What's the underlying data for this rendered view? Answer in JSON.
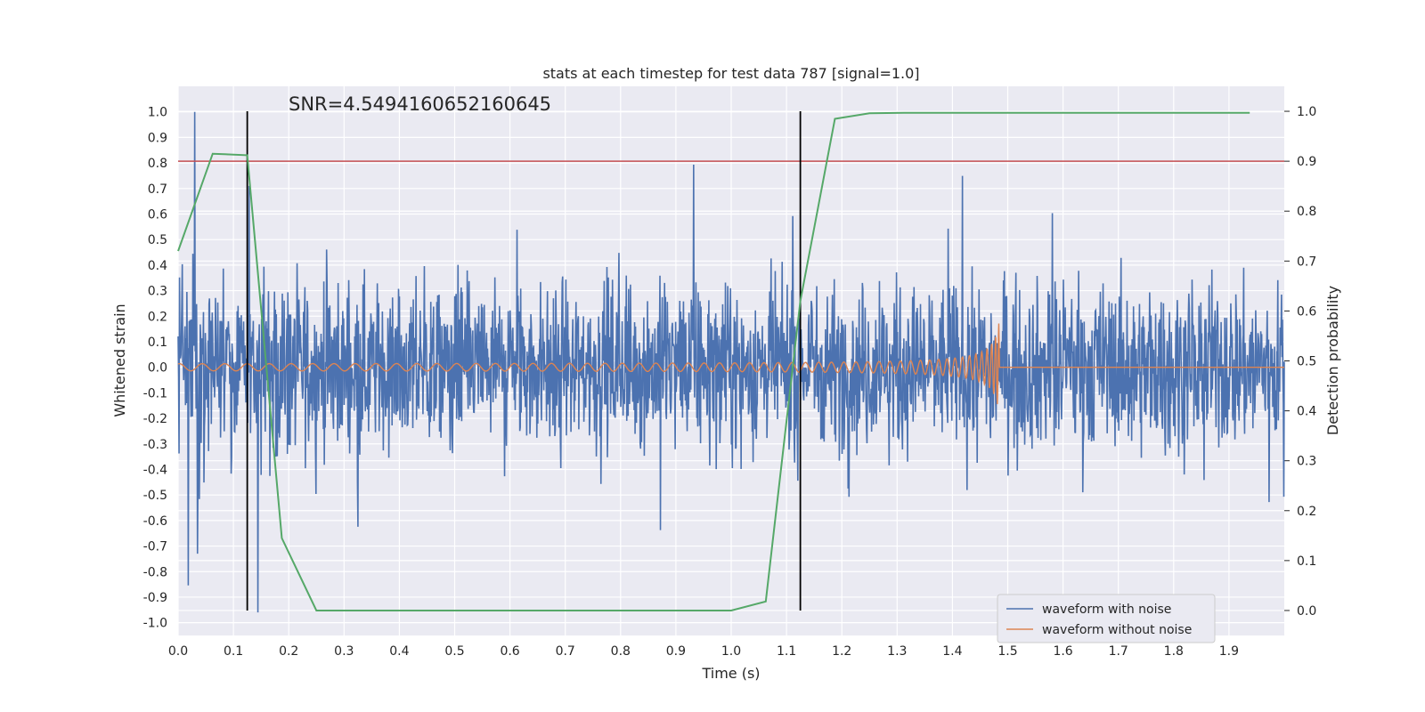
{
  "chart_data": {
    "type": "line",
    "title": "stats at each timestep for test data 787 [signal=1.0]",
    "xlabel": "Time (s)",
    "ylabel": "Whitened strain",
    "y2label": "Detection probability",
    "annotation": "SNR=4.5494160652160645",
    "xlim": [
      0.0,
      2.0
    ],
    "ylim": [
      -1.05,
      1.1
    ],
    "y2lim": [
      -0.05,
      1.05
    ],
    "xticks": [
      "0.0",
      "0.1",
      "0.2",
      "0.3",
      "0.4",
      "0.5",
      "0.6",
      "0.7",
      "0.8",
      "0.9",
      "1.0",
      "1.1",
      "1.2",
      "1.3",
      "1.4",
      "1.5",
      "1.6",
      "1.7",
      "1.8",
      "1.9"
    ],
    "yticks": [
      "1.0",
      "0.9",
      "0.8",
      "0.7",
      "0.6",
      "0.5",
      "0.4",
      "0.3",
      "0.2",
      "0.1",
      "0.0",
      "-0.1",
      "-0.2",
      "-0.3",
      "-0.4",
      "-0.5",
      "-0.6",
      "-0.7",
      "-0.8",
      "-0.9",
      "-1.0"
    ],
    "y2ticks": [
      "1.0",
      "0.9",
      "0.8",
      "0.7",
      "0.6",
      "0.5",
      "0.4",
      "0.3",
      "0.2",
      "0.1",
      "0.0"
    ],
    "grid": true,
    "legend_position": "lower-right",
    "legend": [
      {
        "label": "waveform with noise",
        "color": "#4c72b0"
      },
      {
        "label": "waveform without noise",
        "color": "#dd8452"
      }
    ],
    "threshold": {
      "axis": "right",
      "value": 0.9,
      "color": "#c44e52"
    },
    "markers": {
      "x": [
        0.125,
        1.125
      ],
      "color": "#000000"
    },
    "noisy_waveform": {
      "name": "waveform with noise",
      "color": "#4c72b0",
      "x_start": 0.0,
      "x_end": 2.0,
      "y_min": -0.96,
      "y_max": 1.0,
      "y_typical": [
        -0.45,
        0.45
      ]
    },
    "clean_waveform": {
      "name": "waveform without noise",
      "color": "#dd8452",
      "x_start": 0.0,
      "merger_time": 1.485,
      "amplitude_start": 0.012,
      "amplitude_peak": 0.19,
      "y_after_merger": 0.0
    },
    "probability_series": {
      "axis": "right",
      "color": "#55a868",
      "x": [
        0.0,
        0.0625,
        0.125,
        0.1875,
        0.25,
        0.3125,
        1.0,
        1.0625,
        1.125,
        1.1875,
        1.25,
        1.3125,
        1.9375
      ],
      "values": [
        0.72,
        0.915,
        0.912,
        0.145,
        0.0,
        0.0,
        0.0,
        0.018,
        0.62,
        0.985,
        0.996,
        0.997,
        0.997
      ]
    }
  }
}
